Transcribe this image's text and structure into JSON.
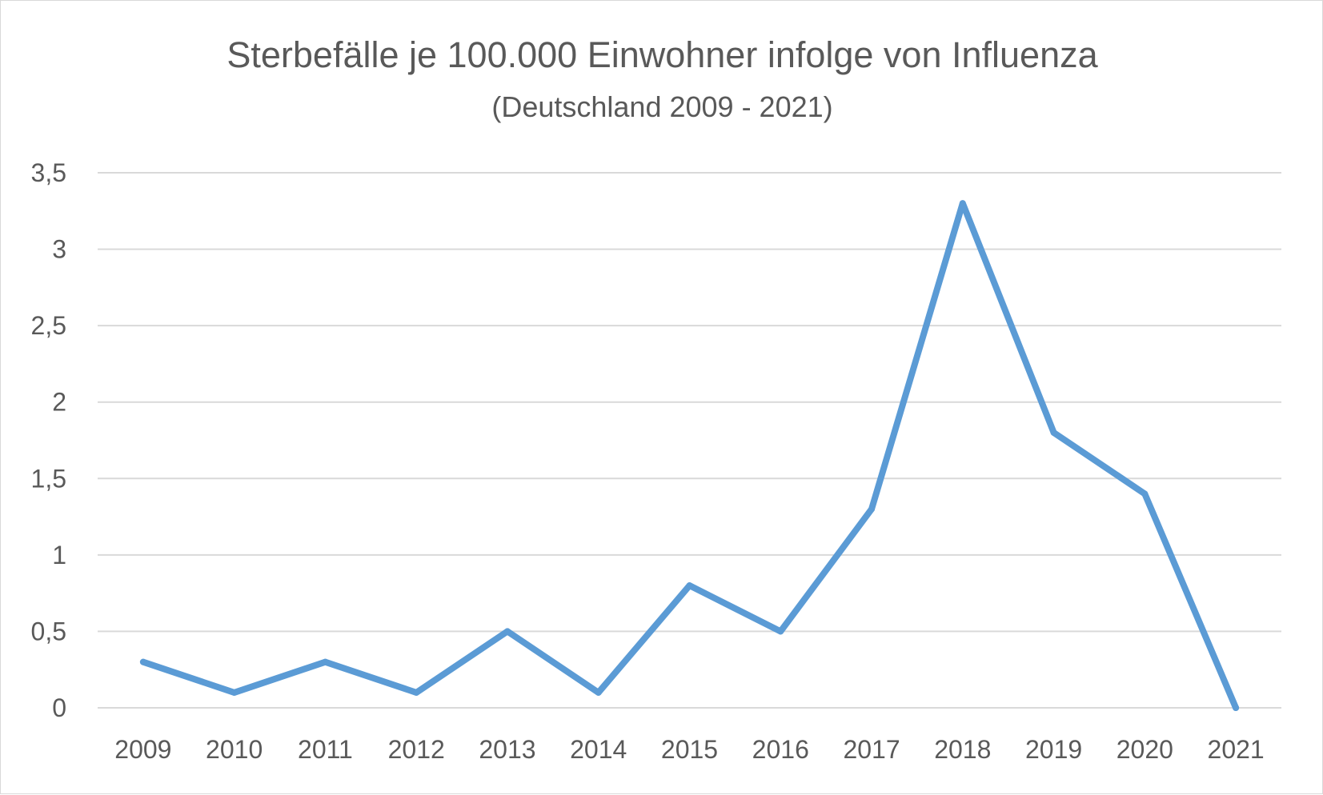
{
  "chart_data": {
    "type": "line",
    "title": "Sterbefälle je 100.000 Einwohner infolge von Influenza",
    "subtitle": "(Deutschland 2009 - 2021)",
    "xlabel": "",
    "ylabel": "",
    "categories": [
      "2009",
      "2010",
      "2011",
      "2012",
      "2013",
      "2014",
      "2015",
      "2016",
      "2017",
      "2018",
      "2019",
      "2020",
      "2021"
    ],
    "series": [
      {
        "values": [
          0.3,
          0.1,
          0.3,
          0.1,
          0.5,
          0.1,
          0.8,
          0.5,
          1.3,
          3.3,
          1.8,
          1.4,
          0.0
        ]
      }
    ],
    "yticks": [
      {
        "value": 0,
        "label": "0"
      },
      {
        "value": 0.5,
        "label": "0,5"
      },
      {
        "value": 1,
        "label": "1"
      },
      {
        "value": 1.5,
        "label": "1,5"
      },
      {
        "value": 2,
        "label": "2"
      },
      {
        "value": 2.5,
        "label": "2,5"
      },
      {
        "value": 3,
        "label": "3"
      },
      {
        "value": 3.5,
        "label": "3,5"
      }
    ],
    "ylim": [
      0,
      3.5
    ],
    "grid": true,
    "legend": "none",
    "line_color": "#5b9bd5",
    "grid_color": "#d9d9d9",
    "text_color": "#595959"
  }
}
